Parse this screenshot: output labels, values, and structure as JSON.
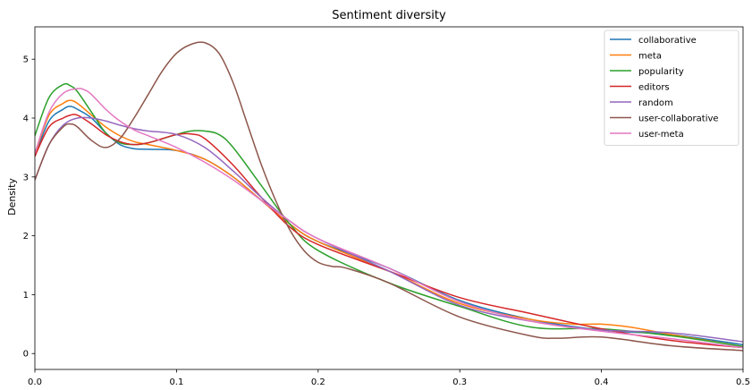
{
  "chart_data": {
    "type": "line",
    "title": "Sentiment diversity",
    "xlabel": "",
    "ylabel": "Density",
    "xlim": [
      0.0,
      0.5
    ],
    "ylim": [
      -0.27,
      5.55
    ],
    "xticks": [
      0.0,
      0.1,
      0.2,
      0.3,
      0.4,
      0.5
    ],
    "xtick_labels": [
      "0.0",
      "0.1",
      "0.2",
      "0.3",
      "0.4",
      "0.5"
    ],
    "yticks": [
      0,
      1,
      2,
      3,
      4,
      5
    ],
    "ytick_labels": [
      "0",
      "1",
      "2",
      "3",
      "4",
      "5"
    ],
    "grid": false,
    "legend_position": "top-right",
    "series": [
      {
        "name": "collaborative",
        "color": "#1f77b4",
        "x": [
          0,
          0.01,
          0.02,
          0.025,
          0.03,
          0.04,
          0.05,
          0.06,
          0.07,
          0.08,
          0.1,
          0.12,
          0.14,
          0.16,
          0.18,
          0.2,
          0.25,
          0.3,
          0.35,
          0.4,
          0.45,
          0.5
        ],
        "y": [
          3.35,
          3.95,
          4.15,
          4.2,
          4.15,
          4.0,
          3.75,
          3.55,
          3.48,
          3.47,
          3.45,
          3.3,
          3.0,
          2.6,
          2.2,
          1.9,
          1.45,
          0.9,
          0.58,
          0.4,
          0.32,
          0.15
        ]
      },
      {
        "name": "meta",
        "color": "#ff7f0e",
        "x": [
          0,
          0.01,
          0.02,
          0.025,
          0.03,
          0.04,
          0.05,
          0.06,
          0.07,
          0.08,
          0.1,
          0.12,
          0.14,
          0.16,
          0.18,
          0.2,
          0.25,
          0.3,
          0.35,
          0.38,
          0.4,
          0.42,
          0.45,
          0.5
        ],
        "y": [
          3.38,
          4.05,
          4.25,
          4.3,
          4.25,
          4.05,
          3.85,
          3.7,
          3.6,
          3.55,
          3.45,
          3.3,
          3.0,
          2.6,
          2.2,
          1.9,
          1.4,
          0.85,
          0.58,
          0.5,
          0.5,
          0.45,
          0.32,
          0.12
        ]
      },
      {
        "name": "popularity",
        "color": "#2ca02c",
        "x": [
          0,
          0.01,
          0.02,
          0.025,
          0.03,
          0.04,
          0.05,
          0.06,
          0.07,
          0.08,
          0.1,
          0.11,
          0.12,
          0.13,
          0.14,
          0.16,
          0.18,
          0.2,
          0.25,
          0.3,
          0.35,
          0.4,
          0.45,
          0.5
        ],
        "y": [
          3.7,
          4.35,
          4.57,
          4.55,
          4.45,
          4.1,
          3.75,
          3.58,
          3.55,
          3.58,
          3.72,
          3.78,
          3.78,
          3.72,
          3.5,
          2.85,
          2.2,
          1.75,
          1.2,
          0.8,
          0.45,
          0.42,
          0.3,
          0.12
        ]
      },
      {
        "name": "editors",
        "color": "#d62728",
        "x": [
          0,
          0.01,
          0.02,
          0.025,
          0.03,
          0.04,
          0.05,
          0.06,
          0.07,
          0.08,
          0.09,
          0.1,
          0.11,
          0.12,
          0.14,
          0.16,
          0.18,
          0.2,
          0.25,
          0.3,
          0.35,
          0.4,
          0.45,
          0.5
        ],
        "y": [
          3.35,
          3.85,
          4.0,
          4.05,
          4.05,
          3.9,
          3.72,
          3.6,
          3.55,
          3.58,
          3.65,
          3.72,
          3.73,
          3.65,
          3.2,
          2.65,
          2.15,
          1.85,
          1.4,
          0.95,
          0.68,
          0.42,
          0.22,
          0.1
        ]
      },
      {
        "name": "random",
        "color": "#9467bd",
        "x": [
          0,
          0.01,
          0.02,
          0.03,
          0.04,
          0.05,
          0.06,
          0.07,
          0.08,
          0.1,
          0.12,
          0.14,
          0.16,
          0.18,
          0.2,
          0.25,
          0.3,
          0.35,
          0.4,
          0.45,
          0.5
        ],
        "y": [
          2.95,
          3.55,
          3.88,
          4.0,
          4.0,
          3.95,
          3.88,
          3.82,
          3.78,
          3.72,
          3.5,
          3.1,
          2.65,
          2.25,
          1.95,
          1.4,
          0.82,
          0.55,
          0.4,
          0.35,
          0.2
        ]
      },
      {
        "name": "user-collaborative",
        "color": "#8c564b",
        "x": [
          0,
          0.01,
          0.02,
          0.025,
          0.03,
          0.04,
          0.05,
          0.06,
          0.07,
          0.08,
          0.09,
          0.1,
          0.11,
          0.12,
          0.13,
          0.14,
          0.15,
          0.16,
          0.17,
          0.18,
          0.19,
          0.2,
          0.21,
          0.22,
          0.25,
          0.3,
          0.35,
          0.37,
          0.4,
          0.45,
          0.5
        ],
        "y": [
          2.95,
          3.55,
          3.85,
          3.9,
          3.85,
          3.62,
          3.5,
          3.65,
          4.0,
          4.4,
          4.8,
          5.1,
          5.25,
          5.28,
          5.1,
          4.6,
          3.9,
          3.2,
          2.6,
          2.1,
          1.75,
          1.55,
          1.48,
          1.45,
          1.2,
          0.62,
          0.3,
          0.26,
          0.28,
          0.13,
          0.05
        ]
      },
      {
        "name": "user-meta",
        "color": "#e377c2",
        "x": [
          0,
          0.01,
          0.02,
          0.03,
          0.035,
          0.04,
          0.05,
          0.06,
          0.07,
          0.08,
          0.1,
          0.12,
          0.14,
          0.16,
          0.18,
          0.2,
          0.25,
          0.3,
          0.35,
          0.4,
          0.45,
          0.5
        ],
        "y": [
          3.4,
          4.1,
          4.42,
          4.5,
          4.48,
          4.4,
          4.15,
          3.95,
          3.8,
          3.7,
          3.5,
          3.25,
          2.95,
          2.6,
          2.25,
          1.95,
          1.45,
          0.88,
          0.55,
          0.38,
          0.25,
          0.1
        ]
      }
    ]
  }
}
